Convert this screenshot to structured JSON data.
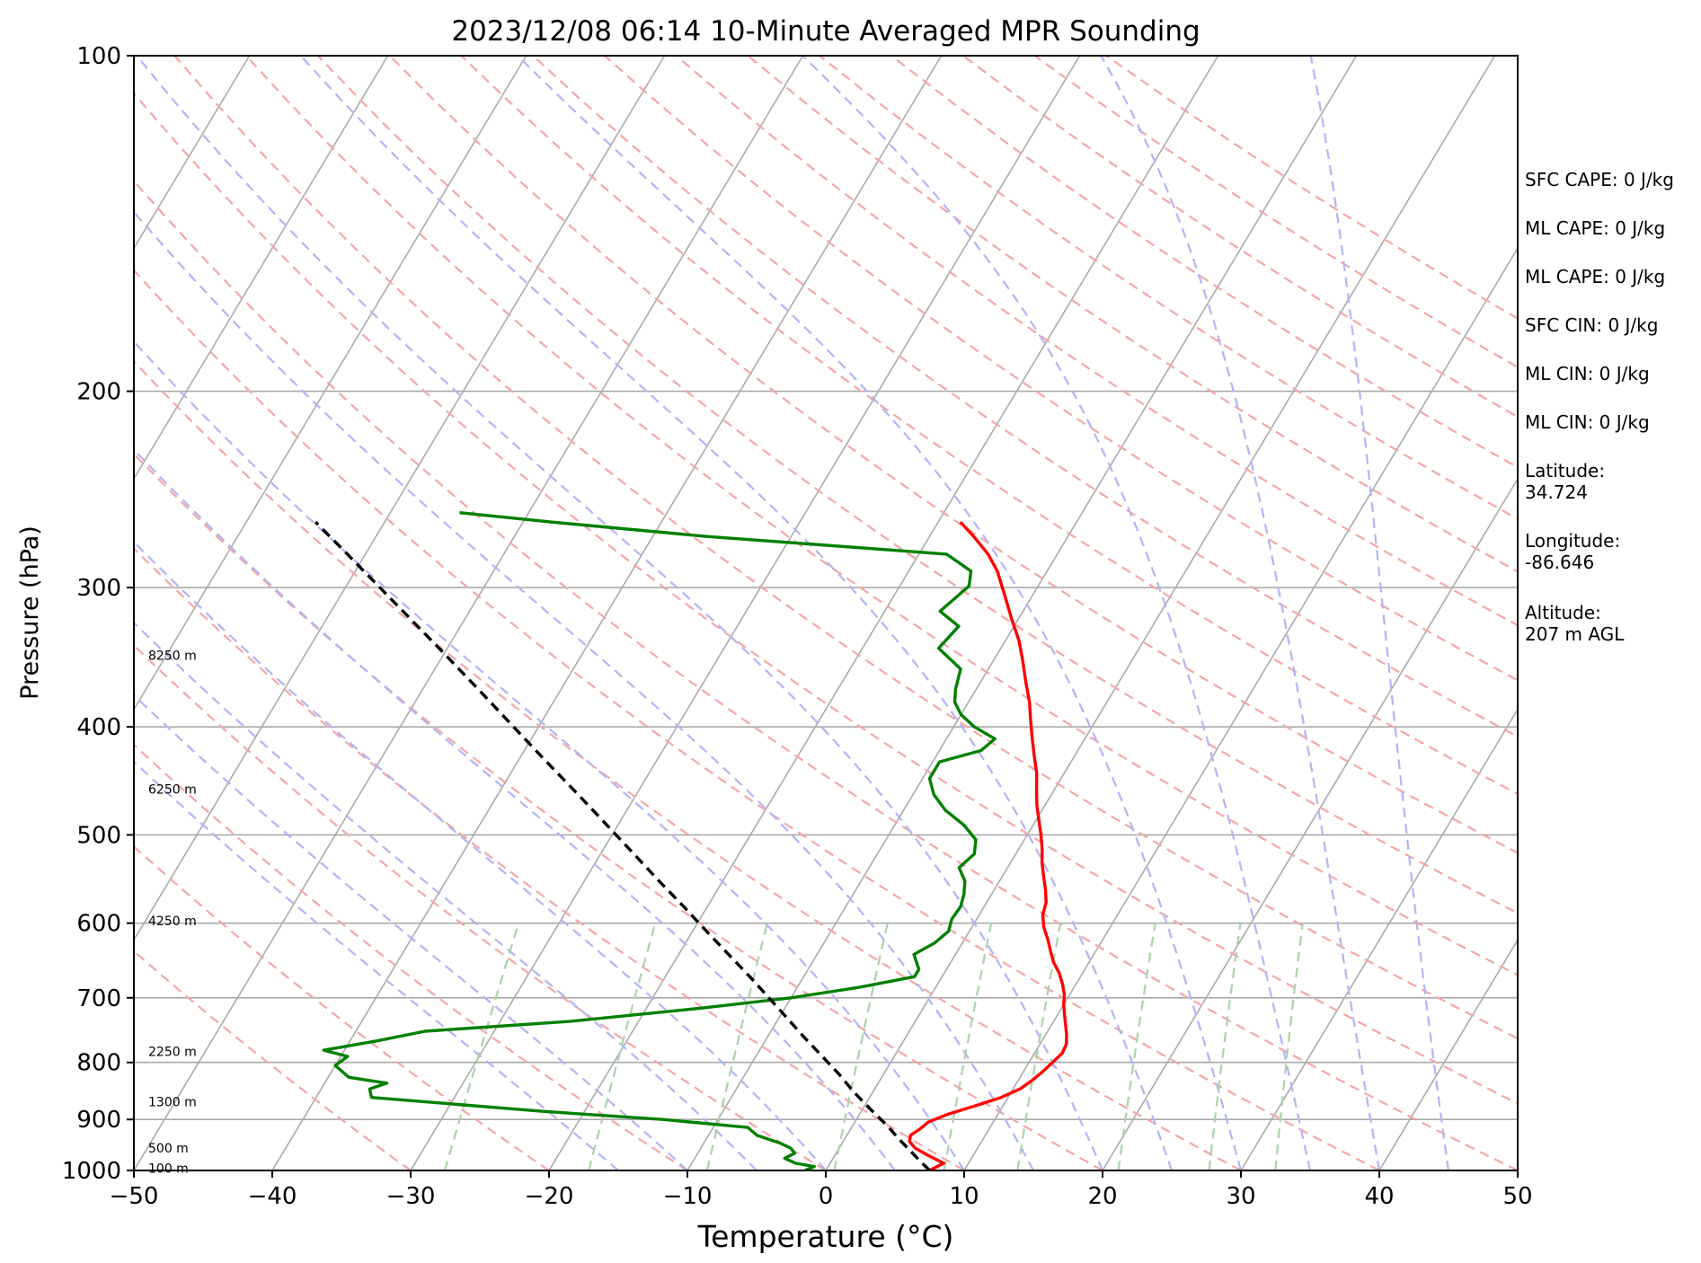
{
  "chart_data": {
    "type": "line",
    "subtype": "skew-T log-P sounding",
    "title": "2023/12/08 06:14 10-Minute Averaged MPR Sounding",
    "xlabel": "Temperature (°C)",
    "ylabel": "Pressure (hPa)",
    "xlim": [
      -50,
      50
    ],
    "ylim": [
      1000,
      100
    ],
    "y_scale": "log",
    "x_ticks": [
      "−50",
      "−40",
      "−30",
      "−20",
      "−10",
      "0",
      "10",
      "20",
      "30",
      "40",
      "50"
    ],
    "y_ticks": [
      "100",
      "200",
      "300",
      "400",
      "500",
      "600",
      "700",
      "800",
      "900",
      "1000"
    ],
    "grid": true,
    "height_labels": [
      {
        "text": "8250 m",
        "p": 345
      },
      {
        "text": "6250 m",
        "p": 455
      },
      {
        "text": "4250 m",
        "p": 597
      },
      {
        "text": "2250 m",
        "p": 782
      },
      {
        "text": "1300 m",
        "p": 868
      },
      {
        "text": "500 m",
        "p": 955
      },
      {
        "text": "100 m",
        "p": 995
      }
    ],
    "colors": {
      "temperature": "#ff0000",
      "dewpoint": "#008000",
      "parcel": "#000000",
      "isotherms": "#aaaaaa",
      "dry_adiabats": "#f4a6a6",
      "moist_adiabats": "#b3b3f5",
      "mixing_ratio": "#a8d4a8"
    },
    "series": [
      {
        "key": "temperature",
        "points": [
          [
            1000,
            7.5
          ],
          [
            985,
            8.2
          ],
          [
            970,
            6.8
          ],
          [
            955,
            5.5
          ],
          [
            942,
            4.8
          ],
          [
            930,
            4.6
          ],
          [
            918,
            5.0
          ],
          [
            905,
            5.3
          ],
          [
            890,
            6.4
          ],
          [
            875,
            8.0
          ],
          [
            860,
            9.5
          ],
          [
            845,
            10.5
          ],
          [
            830,
            11.0
          ],
          [
            815,
            11.4
          ],
          [
            800,
            11.7
          ],
          [
            785,
            12.0
          ],
          [
            770,
            11.9
          ],
          [
            755,
            11.5
          ],
          [
            740,
            11.0
          ],
          [
            725,
            10.5
          ],
          [
            710,
            10.0
          ],
          [
            695,
            9.6
          ],
          [
            680,
            9.0
          ],
          [
            665,
            8.3
          ],
          [
            650,
            7.4
          ],
          [
            635,
            6.7
          ],
          [
            620,
            6.0
          ],
          [
            605,
            5.2
          ],
          [
            590,
            4.6
          ],
          [
            575,
            4.3
          ],
          [
            560,
            3.7
          ],
          [
            545,
            3.0
          ],
          [
            530,
            2.3
          ],
          [
            515,
            1.7
          ],
          [
            500,
            1.0
          ],
          [
            485,
            0.2
          ],
          [
            470,
            -0.6
          ],
          [
            455,
            -1.3
          ],
          [
            440,
            -2.0
          ],
          [
            425,
            -2.9
          ],
          [
            410,
            -3.8
          ],
          [
            395,
            -4.7
          ],
          [
            380,
            -5.6
          ],
          [
            365,
            -6.7
          ],
          [
            350,
            -7.8
          ],
          [
            335,
            -9.0
          ],
          [
            320,
            -10.5
          ],
          [
            305,
            -12.0
          ],
          [
            290,
            -13.6
          ],
          [
            280,
            -15.0
          ],
          [
            270,
            -16.8
          ],
          [
            262,
            -18.4
          ]
        ]
      },
      {
        "key": "dewpoint",
        "points": [
          [
            1000,
            -1.5
          ],
          [
            992,
            -1.0
          ],
          [
            985,
            -2.5
          ],
          [
            975,
            -3.5
          ],
          [
            965,
            -3.0
          ],
          [
            955,
            -3.5
          ],
          [
            945,
            -4.5
          ],
          [
            930,
            -6.5
          ],
          [
            915,
            -7.5
          ],
          [
            900,
            -14.0
          ],
          [
            885,
            -23.0
          ],
          [
            860,
            -36.0
          ],
          [
            845,
            -36.5
          ],
          [
            835,
            -35.5
          ],
          [
            825,
            -38.5
          ],
          [
            805,
            -40.0
          ],
          [
            790,
            -39.5
          ],
          [
            780,
            -41.5
          ],
          [
            765,
            -38.0
          ],
          [
            750,
            -35.0
          ],
          [
            735,
            -25.0
          ],
          [
            715,
            -16.0
          ],
          [
            700,
            -10.0
          ],
          [
            685,
            -5.5
          ],
          [
            670,
            -2.0
          ],
          [
            660,
            -2.0
          ],
          [
            650,
            -2.5
          ],
          [
            640,
            -3.0
          ],
          [
            625,
            -2.0
          ],
          [
            610,
            -1.5
          ],
          [
            595,
            -1.8
          ],
          [
            580,
            -1.7
          ],
          [
            565,
            -2.0
          ],
          [
            550,
            -2.5
          ],
          [
            535,
            -3.5
          ],
          [
            520,
            -3.0
          ],
          [
            505,
            -3.5
          ],
          [
            490,
            -5.0
          ],
          [
            475,
            -7.0
          ],
          [
            460,
            -8.5
          ],
          [
            445,
            -9.5
          ],
          [
            430,
            -9.5
          ],
          [
            420,
            -7.0
          ],
          [
            410,
            -6.5
          ],
          [
            400,
            -8.5
          ],
          [
            390,
            -10.0
          ],
          [
            380,
            -11.0
          ],
          [
            370,
            -11.5
          ],
          [
            355,
            -12.0
          ],
          [
            340,
            -14.5
          ],
          [
            325,
            -14.0
          ],
          [
            315,
            -16.0
          ],
          [
            307,
            -15.5
          ],
          [
            299,
            -15.0
          ],
          [
            290,
            -15.5
          ],
          [
            280,
            -18.0
          ],
          [
            270,
            -36.0
          ],
          [
            262,
            -48.0
          ],
          [
            257,
            -55.0
          ]
        ]
      },
      {
        "key": "parcel",
        "points": [
          [
            1000,
            7.5
          ],
          [
            970,
            5.8
          ],
          [
            940,
            4.1
          ],
          [
            910,
            2.4
          ],
          [
            880,
            0.5
          ],
          [
            850,
            -1.4
          ],
          [
            820,
            -3.2
          ],
          [
            790,
            -5.2
          ],
          [
            760,
            -7.3
          ],
          [
            730,
            -9.4
          ],
          [
            700,
            -11.6
          ],
          [
            670,
            -13.9
          ],
          [
            640,
            -16.4
          ],
          [
            610,
            -19.0
          ],
          [
            580,
            -21.7
          ],
          [
            550,
            -24.6
          ],
          [
            520,
            -27.6
          ],
          [
            490,
            -30.8
          ],
          [
            460,
            -34.2
          ],
          [
            430,
            -37.9
          ],
          [
            400,
            -41.8
          ],
          [
            370,
            -46.0
          ],
          [
            340,
            -50.6
          ],
          [
            310,
            -55.7
          ],
          [
            280,
            -61.3
          ],
          [
            262,
            -65.0
          ]
        ]
      }
    ]
  },
  "stats": [
    {
      "name": "sfc-cape",
      "text": "SFC CAPE: 0 J/kg"
    },
    {
      "name": "ml-cape-1",
      "text": "ML CAPE: 0 J/kg"
    },
    {
      "name": "ml-cape-2",
      "text": "ML CAPE: 0 J/kg"
    },
    {
      "name": "sfc-cin",
      "text": "SFC CIN: 0 J/kg"
    },
    {
      "name": "ml-cin-1",
      "text": "ML CIN: 0 J/kg"
    },
    {
      "name": "ml-cin-2",
      "text": "ML CIN: 0 J/kg"
    },
    {
      "name": "latitude",
      "text": "Latitude:\n34.724"
    },
    {
      "name": "longitude",
      "text": "Longitude:\n-86.646"
    },
    {
      "name": "altitude",
      "text": "Altitude:\n207 m AGL"
    }
  ]
}
